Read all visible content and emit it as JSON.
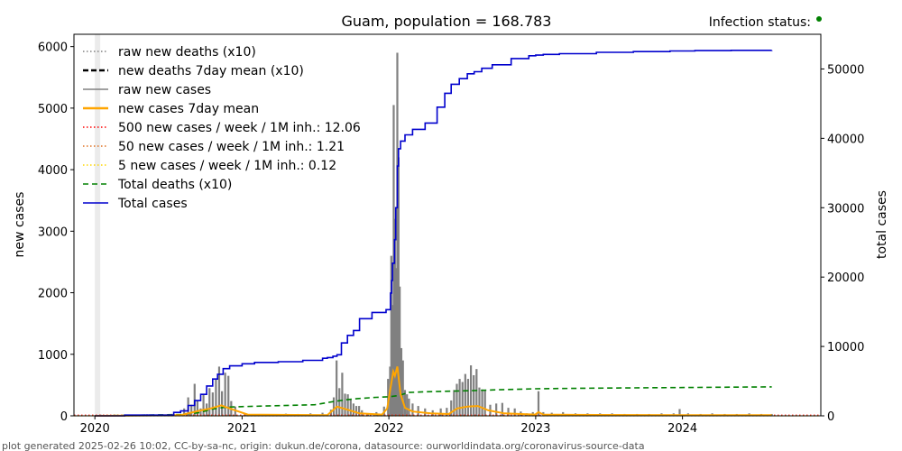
{
  "chart_data": {
    "type": "line",
    "title": "Guam, population = 168.783",
    "status_label": "Infection status:",
    "status_color": "#008000",
    "ylabel": "new cases",
    "y2label": "total cases",
    "ylim": [
      0,
      6200
    ],
    "y2lim": [
      0,
      55000
    ],
    "yticks": [
      "0",
      "1000",
      "2000",
      "3000",
      "4000",
      "5000",
      "6000"
    ],
    "y2ticks": [
      "0",
      "10000",
      "20000",
      "30000",
      "40000",
      "50000"
    ],
    "xlim": [
      "2019-11-10",
      "2024-12-10"
    ],
    "xticks": [
      {
        "date": "2020-01-01",
        "label": "2020"
      },
      {
        "date": "2021-01-01",
        "label": "2021"
      },
      {
        "date": "2022-01-01",
        "label": "2022"
      },
      {
        "date": "2023-01-01",
        "label": "2023"
      },
      {
        "date": "2024-01-01",
        "label": "2024"
      }
    ],
    "legend_position": "upper-left",
    "legend": [
      {
        "label": "raw new deaths (x10)",
        "color": "#808080",
        "style": "dotted"
      },
      {
        "label": "new deaths 7day mean (x10)",
        "color": "#000000",
        "style": "dashed-bold"
      },
      {
        "label": "raw new cases",
        "color": "#808080",
        "style": "solid"
      },
      {
        "label": "new cases 7day mean",
        "color": "#ffa500",
        "style": "solid-bold"
      },
      {
        "label": "500 new cases / week / 1M inh.: 12.06",
        "color": "#ff0000",
        "style": "dotted"
      },
      {
        "label": "50 new cases / week / 1M inh.: 1.21",
        "color": "#e07020",
        "style": "dotted"
      },
      {
        "label": "5 new cases / week / 1M inh.: 0.12",
        "color": "#ffd700",
        "style": "dotted"
      },
      {
        "label": "Total deaths (x10)",
        "color": "#008000",
        "style": "dashed"
      },
      {
        "label": "Total cases",
        "color": "#0000cd",
        "style": "solid"
      }
    ],
    "series": [
      {
        "name": "raw new cases",
        "axis": "left",
        "x": [
          "2020-01-15",
          "2020-03-20",
          "2020-05-10",
          "2020-07-15",
          "2020-08-10",
          "2020-08-20",
          "2020-08-28",
          "2020-09-05",
          "2020-09-12",
          "2020-09-20",
          "2020-09-27",
          "2020-10-05",
          "2020-10-12",
          "2020-10-20",
          "2020-10-28",
          "2020-11-05",
          "2020-11-12",
          "2020-11-20",
          "2020-11-28",
          "2020-12-05",
          "2020-12-15",
          "2021-01-10",
          "2021-02-15",
          "2021-03-20",
          "2021-04-20",
          "2021-05-20",
          "2021-06-20",
          "2021-07-20",
          "2021-08-10",
          "2021-08-17",
          "2021-08-24",
          "2021-08-31",
          "2021-09-07",
          "2021-09-14",
          "2021-09-21",
          "2021-09-28",
          "2021-10-05",
          "2021-10-12",
          "2021-10-19",
          "2021-10-26",
          "2021-11-10",
          "2021-12-01",
          "2021-12-20",
          "2021-12-30",
          "2022-01-04",
          "2022-01-07",
          "2022-01-10",
          "2022-01-13",
          "2022-01-16",
          "2022-01-19",
          "2022-01-22",
          "2022-01-25",
          "2022-01-28",
          "2022-02-01",
          "2022-02-05",
          "2022-02-10",
          "2022-02-15",
          "2022-02-20",
          "2022-03-01",
          "2022-03-15",
          "2022-04-01",
          "2022-04-20",
          "2022-05-10",
          "2022-05-25",
          "2022-06-05",
          "2022-06-12",
          "2022-06-19",
          "2022-06-26",
          "2022-07-03",
          "2022-07-10",
          "2022-07-17",
          "2022-07-24",
          "2022-07-31",
          "2022-08-07",
          "2022-08-14",
          "2022-08-21",
          "2022-08-28",
          "2022-09-10",
          "2022-09-25",
          "2022-10-10",
          "2022-10-25",
          "2022-11-10",
          "2022-11-25",
          "2022-12-10",
          "2022-12-25",
          "2023-01-08",
          "2023-01-20",
          "2023-02-10",
          "2023-03-10",
          "2023-04-10",
          "2023-05-10",
          "2023-06-10",
          "2023-07-10",
          "2023-08-10",
          "2023-09-10",
          "2023-10-10",
          "2023-11-10",
          "2023-12-10",
          "2023-12-25",
          "2024-01-15",
          "2024-02-15",
          "2024-03-15",
          "2024-04-15",
          "2024-05-15",
          "2024-06-15",
          "2024-07-15",
          "2024-08-10"
        ],
        "values": [
          20,
          15,
          25,
          30,
          120,
          300,
          180,
          520,
          250,
          120,
          350,
          200,
          450,
          380,
          600,
          800,
          400,
          700,
          650,
          240,
          150,
          40,
          30,
          25,
          35,
          30,
          40,
          50,
          100,
          300,
          900,
          450,
          700,
          360,
          350,
          260,
          200,
          160,
          160,
          90,
          40,
          60,
          150,
          600,
          800,
          2600,
          1800,
          5050,
          3200,
          2400,
          5900,
          4200,
          2100,
          1100,
          900,
          420,
          350,
          280,
          200,
          160,
          120,
          90,
          120,
          130,
          250,
          420,
          520,
          600,
          550,
          680,
          600,
          820,
          660,
          760,
          460,
          430,
          420,
          180,
          200,
          210,
          130,
          120,
          70,
          40,
          60,
          400,
          60,
          50,
          60,
          40,
          40,
          40,
          40,
          30,
          30,
          30,
          40,
          40,
          110,
          40,
          30,
          40,
          30,
          30,
          40,
          30,
          30
        ]
      },
      {
        "name": "new cases 7day mean",
        "axis": "left",
        "x": [
          "2020-01-01",
          "2020-08-01",
          "2020-09-15",
          "2020-10-15",
          "2020-11-10",
          "2020-12-10",
          "2021-01-15",
          "2021-08-01",
          "2021-08-25",
          "2021-09-20",
          "2021-10-20",
          "2021-12-15",
          "2021-12-28",
          "2022-01-05",
          "2022-01-12",
          "2022-01-16",
          "2022-01-22",
          "2022-01-30",
          "2022-02-10",
          "2022-03-01",
          "2022-04-15",
          "2022-05-30",
          "2022-06-20",
          "2022-07-15",
          "2022-08-10",
          "2022-09-05",
          "2022-10-15",
          "2022-12-31",
          "2023-01-08",
          "2023-01-20",
          "2023-06-01",
          "2024-01-01",
          "2024-08-10"
        ],
        "values": [
          0,
          10,
          80,
          120,
          170,
          100,
          20,
          10,
          150,
          100,
          40,
          20,
          120,
          450,
          720,
          650,
          800,
          350,
          130,
          70,
          40,
          30,
          120,
          150,
          160,
          90,
          40,
          20,
          60,
          20,
          15,
          10,
          10
        ]
      },
      {
        "name": "Total cases",
        "axis": "right",
        "x": [
          "2020-01-01",
          "2020-03-15",
          "2020-07-15",
          "2020-08-01",
          "2020-08-20",
          "2020-09-05",
          "2020-09-20",
          "2020-10-05",
          "2020-10-20",
          "2020-11-01",
          "2020-11-15",
          "2020-12-01",
          "2021-01-01",
          "2021-02-01",
          "2021-04-01",
          "2021-06-01",
          "2021-07-20",
          "2021-08-01",
          "2021-08-15",
          "2021-08-25",
          "2021-09-05",
          "2021-09-20",
          "2021-10-05",
          "2021-10-20",
          "2021-11-20",
          "2021-12-25",
          "2022-01-05",
          "2022-01-08",
          "2022-01-10",
          "2022-01-15",
          "2022-01-18",
          "2022-01-22",
          "2022-01-25",
          "2022-01-30",
          "2022-02-10",
          "2022-03-01",
          "2022-04-01",
          "2022-05-01",
          "2022-05-20",
          "2022-06-05",
          "2022-06-25",
          "2022-07-15",
          "2022-08-01",
          "2022-08-20",
          "2022-09-15",
          "2022-11-01",
          "2022-12-15",
          "2023-01-01",
          "2023-01-20",
          "2023-03-01",
          "2023-06-01",
          "2023-09-01",
          "2023-12-01",
          "2024-02-01",
          "2024-05-01",
          "2024-08-10"
        ],
        "values": [
          0,
          100,
          500,
          700,
          1500,
          2200,
          3100,
          4300,
          5300,
          6000,
          6800,
          7200,
          7500,
          7700,
          7800,
          8000,
          8300,
          8400,
          8600,
          8800,
          10500,
          11600,
          12300,
          14000,
          14900,
          15300,
          17700,
          19500,
          22000,
          25400,
          30000,
          36000,
          38500,
          39600,
          40500,
          41300,
          42200,
          44500,
          46500,
          47800,
          48600,
          49300,
          49600,
          50100,
          50600,
          51500,
          51900,
          52000,
          52100,
          52200,
          52400,
          52500,
          52600,
          52650,
          52680,
          52700
        ]
      },
      {
        "name": "Total deaths (x10)",
        "axis": "left",
        "x": [
          "2020-01-01",
          "2020-08-01",
          "2020-09-15",
          "2020-10-20",
          "2020-11-20",
          "2020-12-31",
          "2021-03-01",
          "2021-07-01",
          "2021-08-15",
          "2021-09-15",
          "2021-10-15",
          "2021-12-01",
          "2022-01-01",
          "2022-01-25",
          "2022-02-20",
          "2022-04-01",
          "2022-06-01",
          "2022-08-01",
          "2022-09-15",
          "2022-12-31",
          "2023-06-01",
          "2024-08-10"
        ],
        "values": [
          0,
          20,
          50,
          110,
          140,
          150,
          160,
          180,
          230,
          260,
          280,
          300,
          310,
          330,
          380,
          390,
          400,
          410,
          420,
          440,
          450,
          470
        ]
      }
    ],
    "thresholds": [
      {
        "label": "500 new cases / week / 1M inh.: 12.06",
        "value": 12.06,
        "color": "#ff0000"
      },
      {
        "label": "50 new cases / week / 1M inh.: 1.21",
        "value": 1.21,
        "color": "#e07020"
      },
      {
        "label": "5 new cases / week / 1M inh.: 0.12",
        "value": 0.12,
        "color": "#ffd700"
      }
    ],
    "footer": "plot generated 2025-02-26 10:02, CC-by-sa-nc, origin: dukun.de/corona, datasource: ourworldindata.org/coronavirus-source-data"
  }
}
